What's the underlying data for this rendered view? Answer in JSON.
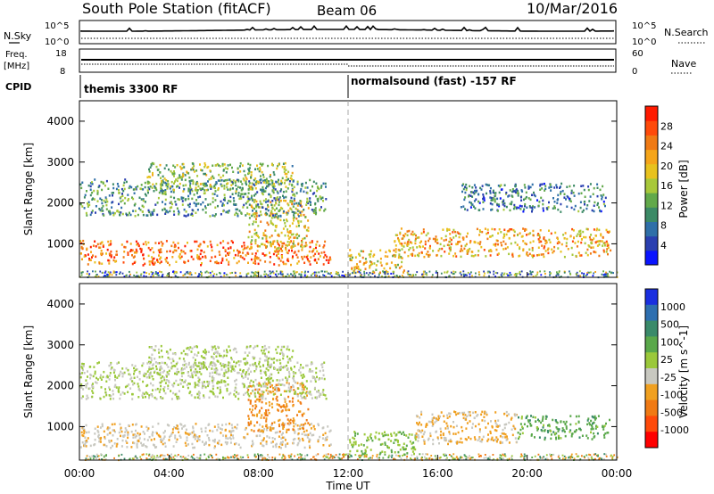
{
  "header": {
    "station": "South Pole Station (fitACF)",
    "beam": "Beam 06",
    "date": "10/Mar/2016"
  },
  "side_labels": {
    "nsky": "N.Sky",
    "freq_line1": "Freq.",
    "freq_line2": "[MHz]",
    "cpid": "CPID",
    "nsearch": "N.Search",
    "nave": "Nave"
  },
  "noise_axis": {
    "top": "10^5",
    "bottom": "10^0"
  },
  "freq_axis": {
    "left_top": "18",
    "left_bottom": "8",
    "right_top": "60",
    "right_bottom": "0"
  },
  "cpid": {
    "segment1": "themis 3300 RF",
    "segment2": "normalsound (fast) -157 RF"
  },
  "x_axis": {
    "label": "Time UT",
    "ticks": [
      "00:00",
      "04:00",
      "08:00",
      "12:00",
      "16:00",
      "20:00",
      "00:00"
    ]
  },
  "colors": {
    "power_scale": [
      "#0a14ff",
      "#2a3fb0",
      "#2f6fa8",
      "#3c8a66",
      "#62a94a",
      "#a8c83a",
      "#e8c21e",
      "#f5a51a",
      "#f07a14",
      "#ff4a0a",
      "#ff1a00"
    ],
    "velocity_scale": [
      "#1a2fe0",
      "#2e6fb0",
      "#3a8a6a",
      "#5aa84a",
      "#9bc83a",
      "#c8c8c0",
      "#f0a020",
      "#f07a14",
      "#ff4a0a",
      "#ff0000"
    ]
  },
  "chart_data": [
    {
      "type": "heatmap",
      "name": "power",
      "ylabel": "Slant Range [km]",
      "xlabel": "",
      "ylim": [
        180,
        4500
      ],
      "yticks": [
        1000,
        2000,
        3000,
        4000
      ],
      "xlim_hours": [
        0,
        24
      ],
      "colorbar": {
        "label": "Power [dB]",
        "ticks": [
          "4",
          "8",
          "12",
          "16",
          "20",
          "24",
          "28"
        ],
        "range": [
          0,
          30
        ]
      },
      "regions": [
        {
          "t0": 0.0,
          "t1": 11.2,
          "r0": 500,
          "r1": 1100,
          "value": 24
        },
        {
          "t0": 7.5,
          "t1": 10.2,
          "r0": 900,
          "r1": 2100,
          "value": 18
        },
        {
          "t0": 0.0,
          "t1": 11.0,
          "r0": 1700,
          "r1": 2600,
          "value": 10
        },
        {
          "t0": 3.0,
          "t1": 9.5,
          "r0": 2300,
          "r1": 3000,
          "value": 14
        },
        {
          "t0": 12.0,
          "t1": 14.5,
          "r0": 300,
          "r1": 900,
          "value": 18
        },
        {
          "t0": 14.0,
          "t1": 23.7,
          "r0": 700,
          "r1": 1400,
          "value": 20
        },
        {
          "t0": 17.0,
          "t1": 23.5,
          "r0": 1800,
          "r1": 2500,
          "value": 8
        }
      ]
    },
    {
      "type": "heatmap",
      "name": "velocity",
      "ylabel": "Slant Range [km]",
      "xlabel": "Time UT",
      "ylim": [
        180,
        4500
      ],
      "yticks": [
        1000,
        2000,
        3000,
        4000
      ],
      "xlim_hours": [
        0,
        24
      ],
      "colorbar": {
        "label": "Velocity [m s^-1]",
        "ticks": [
          "1000",
          "500",
          "100",
          "25",
          "-25",
          "-100",
          "-500",
          "-1000"
        ],
        "range": [
          -1000,
          1000
        ]
      },
      "regions": [
        {
          "t0": 0.0,
          "t1": 11.2,
          "r0": 500,
          "r1": 1100,
          "value": -150
        },
        {
          "t0": 7.5,
          "t1": 10.2,
          "r0": 900,
          "r1": 2100,
          "value": -400
        },
        {
          "t0": 0.0,
          "t1": 11.0,
          "r0": 1700,
          "r1": 2600,
          "value": 10
        },
        {
          "t0": 3.0,
          "t1": 9.5,
          "r0": 2300,
          "r1": 3000,
          "value": 5
        },
        {
          "t0": 12.0,
          "t1": 15.0,
          "r0": 300,
          "r1": 900,
          "value": 150
        },
        {
          "t0": 15.0,
          "t1": 19.5,
          "r0": 600,
          "r1": 1400,
          "value": -200
        },
        {
          "t0": 19.5,
          "t1": 23.7,
          "r0": 700,
          "r1": 1300,
          "value": 300
        }
      ]
    }
  ]
}
